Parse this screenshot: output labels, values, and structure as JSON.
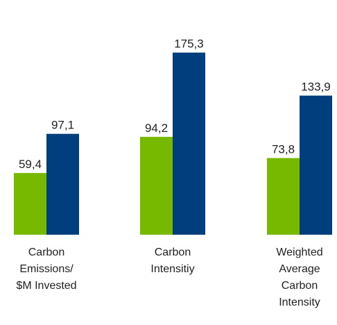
{
  "chart_data": {
    "type": "bar",
    "categories": [
      [
        "Carbon",
        "Emissions/",
        "$M Invested"
      ],
      [
        "Carbon",
        "Intensitiy"
      ],
      [
        "Weighted",
        "Average",
        "Carbon",
        "Intensity"
      ]
    ],
    "series": [
      {
        "color": "#76B900",
        "values": [
          59.4,
          94.2,
          73.8
        ],
        "labels": [
          "59,4",
          "94,2",
          "73,8"
        ]
      },
      {
        "color": "#003E7E",
        "values": [
          97.1,
          175.3,
          133.9
        ],
        "labels": [
          "97,1",
          "175,3",
          "133,9"
        ]
      }
    ],
    "ylim": [
      0,
      200
    ],
    "grid": false,
    "legend": "none"
  }
}
